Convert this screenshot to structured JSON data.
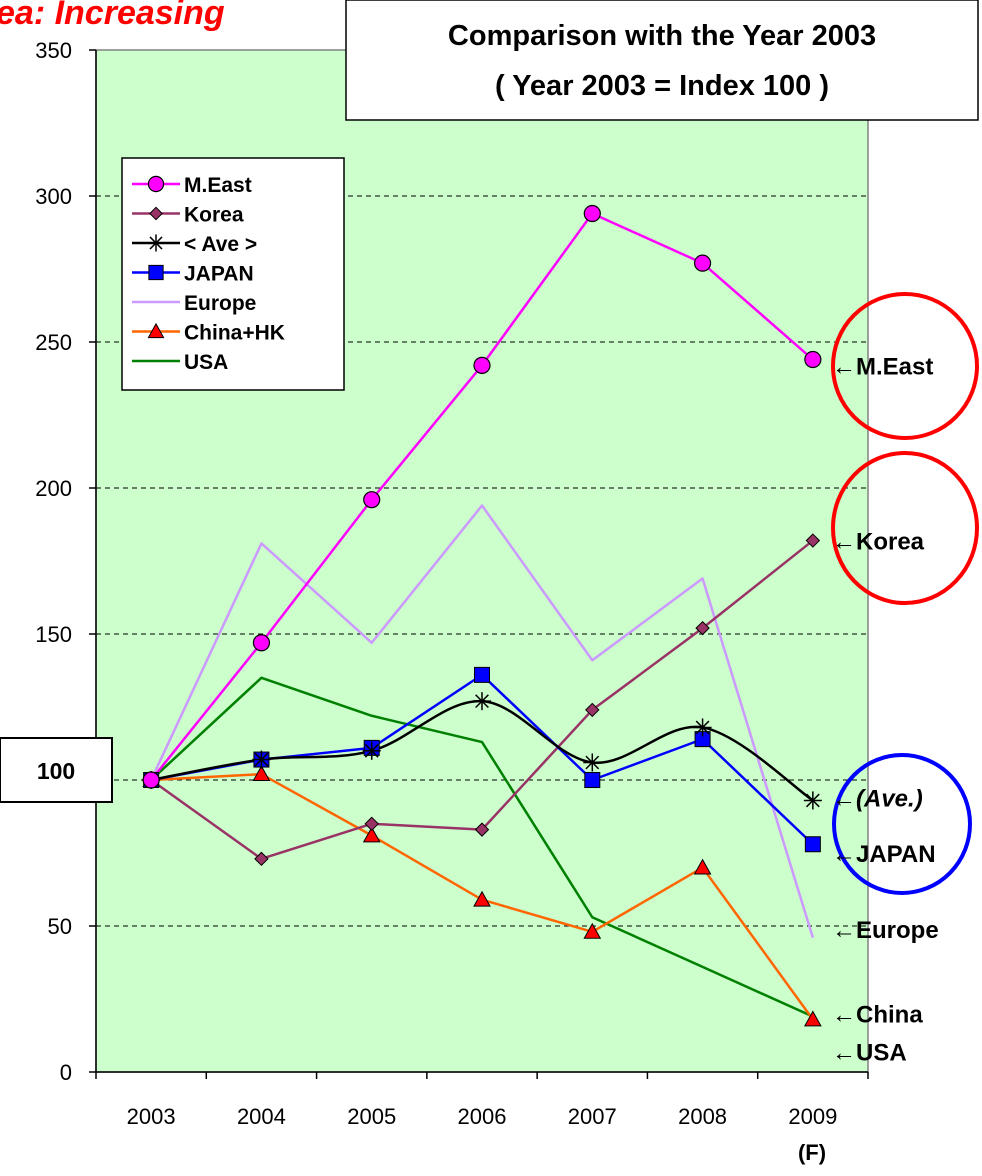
{
  "chart_data": {
    "type": "line",
    "banner": "ea: Increasing",
    "title_lines": [
      "Comparison with the Year 2003",
      "( Year 2003 = Index 100 )"
    ],
    "categories": [
      "2003",
      "2004",
      "2005",
      "2006",
      "2007",
      "2008",
      "2009"
    ],
    "x_sublabel": "(F)",
    "ylim": [
      0,
      350
    ],
    "yticks": [
      0,
      50,
      100,
      150,
      200,
      250,
      300,
      350
    ],
    "grid": "horizontal dashed",
    "legend_position": "top-left",
    "reference_label": "100",
    "series": [
      {
        "name": "M.East",
        "color": "#ff00ff",
        "marker": "circle",
        "marker_fill": "#ff00ff",
        "values": [
          100,
          147,
          196,
          242,
          294,
          277,
          244
        ],
        "end_label": "←M.East",
        "end_label_y": 242
      },
      {
        "name": "Korea",
        "color": "#993366",
        "marker": "diamond",
        "marker_fill": "#993366",
        "values": [
          100,
          73,
          85,
          83,
          124,
          152,
          182
        ],
        "end_label": "←Korea",
        "end_label_y": 182
      },
      {
        "name": "< Ave >",
        "color": "#000000",
        "marker": "asterisk",
        "smooth": true,
        "values": [
          100,
          107,
          110,
          127,
          106,
          118,
          93
        ],
        "end_label": "←(Ave.)",
        "end_label_y": 94,
        "end_label_italic": true
      },
      {
        "name": "JAPAN",
        "color": "#0000ff",
        "marker": "square",
        "marker_fill": "#0000ff",
        "values": [
          100,
          107,
          111,
          136,
          100,
          114,
          78
        ],
        "end_label": "←JAPAN",
        "end_label_y": 75
      },
      {
        "name": "Europe",
        "color": "#cc99ff",
        "marker": "none",
        "values": [
          100,
          181,
          147,
          194,
          141,
          169,
          46
        ],
        "end_label": "←Europe",
        "end_label_y": 49
      },
      {
        "name": "China+HK",
        "color": "#ff6600",
        "marker": "triangle",
        "marker_fill": "#ff0000",
        "values": [
          100,
          102,
          81,
          59,
          48,
          70,
          18
        ],
        "end_label": "←China",
        "end_label_y": 20
      },
      {
        "name": "USA",
        "color": "#008000",
        "marker": "none",
        "values": [
          100,
          135,
          122,
          113,
          53,
          36,
          19
        ],
        "end_label": "←USA",
        "end_label_y": 7
      }
    ],
    "annotations": [
      {
        "type": "circle",
        "color": "#ff0000",
        "around": "M.East"
      },
      {
        "type": "circle",
        "color": "#ff0000",
        "around": "Korea"
      },
      {
        "type": "circle",
        "color": "#0000ff",
        "around": "(Ave.) / JAPAN"
      }
    ]
  }
}
